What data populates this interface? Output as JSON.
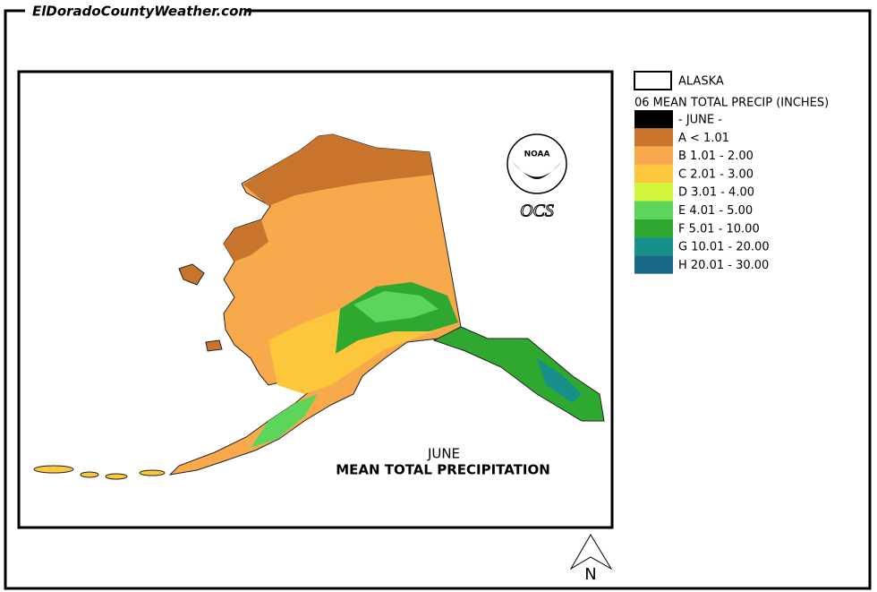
{
  "header": {
    "site": "ElDoradoCountyWeather.com"
  },
  "map": {
    "month": "JUNE",
    "title": "MEAN TOTAL PRECIPITATION",
    "logo_top": "NOAA",
    "logo_bottom": "OCS",
    "north": "N"
  },
  "legend": {
    "boundary": "ALASKA",
    "title": "06 MEAN TOTAL PRECIP (INCHES)",
    "items": [
      {
        "label": "- JUNE -",
        "color": "#000000"
      },
      {
        "label": "A < 1.01",
        "color": "#c8742c"
      },
      {
        "label": "B 1.01 - 2.00",
        "color": "#f7a94b"
      },
      {
        "label": "C 2.01 - 3.00",
        "color": "#fcc73d"
      },
      {
        "label": "D 3.01 - 4.00",
        "color": "#d2f53a"
      },
      {
        "label": "E 4.01 - 5.00",
        "color": "#5bd65b"
      },
      {
        "label": "F 5.01 - 10.00",
        "color": "#2fa82f"
      },
      {
        "label": "G 10.01 - 20.00",
        "color": "#17908a"
      },
      {
        "label": "H 20.01 - 30.00",
        "color": "#1a6888"
      }
    ]
  }
}
